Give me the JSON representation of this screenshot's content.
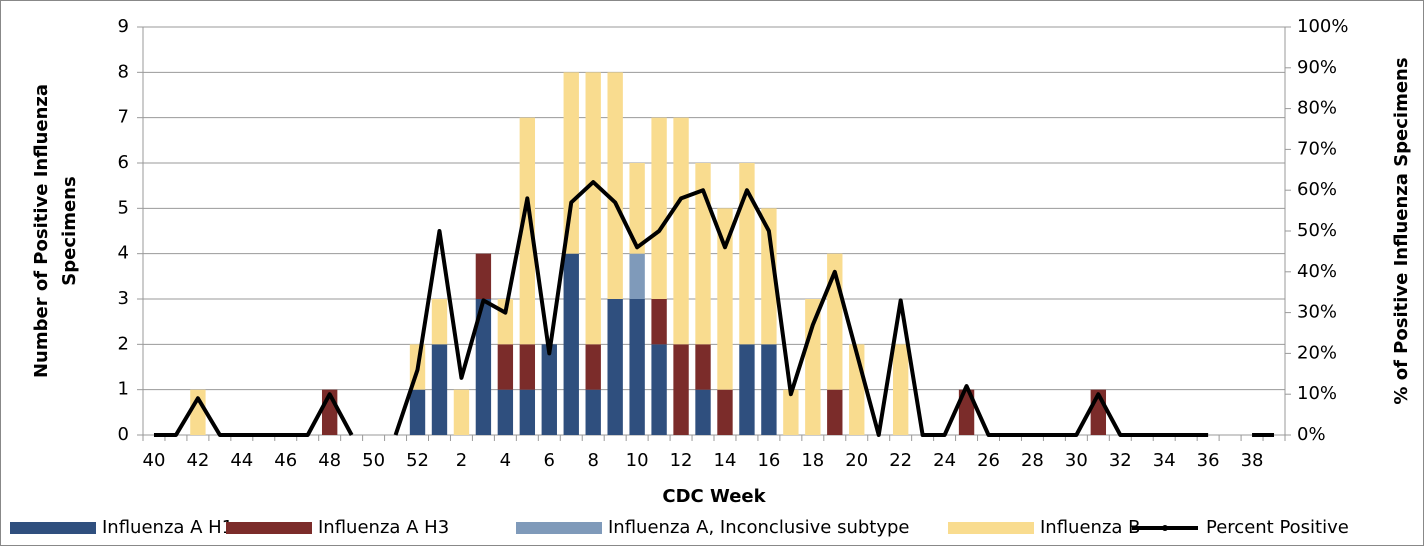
{
  "chart_data": {
    "type": "bar",
    "x_label": "CDC Week",
    "y_label": [
      "Number of Positive Influenza",
      "Specimens"
    ],
    "y2_label": "% of Positive Influenza Specimens",
    "categories": [
      "40",
      null,
      "42",
      null,
      "44",
      null,
      "46",
      null,
      "48",
      null,
      "50",
      null,
      "52",
      null,
      "2",
      null,
      "4",
      null,
      "6",
      null,
      "8",
      null,
      "10",
      null,
      "12",
      null,
      "14",
      null,
      "16",
      null,
      "18",
      null,
      "20",
      null,
      "22",
      null,
      "24",
      null,
      "26",
      null,
      "28",
      null,
      "30",
      null,
      "32",
      null,
      "34",
      null,
      "36",
      null,
      "38",
      null
    ],
    "ylim": [
      0,
      9
    ],
    "yticks": [
      0,
      1,
      2,
      3,
      4,
      5,
      6,
      7,
      8,
      9
    ],
    "y2lim": [
      0,
      100
    ],
    "y2ticks": [
      {
        "value": 0,
        "label": "0%"
      },
      {
        "value": 10,
        "label": "10%"
      },
      {
        "value": 20,
        "label": "20%"
      },
      {
        "value": 30,
        "label": "30%"
      },
      {
        "value": 40,
        "label": "40%"
      },
      {
        "value": 50,
        "label": "50%"
      },
      {
        "value": 60,
        "label": "60%"
      },
      {
        "value": 70,
        "label": "70%"
      },
      {
        "value": 80,
        "label": "80%"
      },
      {
        "value": 90,
        "label": "90%"
      },
      {
        "value": 100,
        "label": "100%"
      }
    ],
    "grid": true,
    "legend": "bottom",
    "series": [
      {
        "name": "Influenza A H1",
        "color": "#2f4f7e",
        "values": [
          0,
          0,
          0,
          0,
          0,
          0,
          0,
          0,
          0,
          0,
          0,
          0,
          1,
          2,
          0,
          3,
          1,
          1,
          2,
          4,
          1,
          3,
          3,
          2,
          0,
          1,
          0,
          2,
          2,
          0,
          0,
          0,
          0,
          0,
          0,
          0,
          0,
          0,
          0,
          0,
          0,
          0,
          0,
          0,
          0,
          0,
          0,
          0,
          0,
          0,
          0,
          0
        ]
      },
      {
        "name": "Influenza A H3",
        "color": "#7b2c2a",
        "values": [
          0,
          0,
          0,
          0,
          0,
          0,
          0,
          0,
          1,
          0,
          0,
          0,
          0,
          0,
          0,
          1,
          1,
          1,
          0,
          0,
          1,
          0,
          0,
          1,
          2,
          1,
          1,
          0,
          0,
          0,
          0,
          1,
          0,
          0,
          0,
          0,
          0,
          1,
          0,
          0,
          0,
          0,
          0,
          1,
          0,
          0,
          0,
          0,
          0,
          0,
          0,
          0
        ]
      },
      {
        "name": "Influenza A, Inconclusive subtype",
        "color": "#7f9aba",
        "values": [
          0,
          0,
          0,
          0,
          0,
          0,
          0,
          0,
          0,
          0,
          0,
          0,
          0,
          0,
          0,
          0,
          0,
          0,
          0,
          0,
          0,
          0,
          1,
          0,
          0,
          0,
          0,
          0,
          0,
          0,
          0,
          0,
          0,
          0,
          0,
          0,
          0,
          0,
          0,
          0,
          0,
          0,
          0,
          0,
          0,
          0,
          0,
          0,
          0,
          0,
          0,
          0
        ]
      },
      {
        "name": "Influenza B",
        "color": "#f9dc8f",
        "values": [
          0,
          0,
          1,
          0,
          0,
          0,
          0,
          0,
          0,
          0,
          0,
          0,
          1,
          1,
          1,
          0,
          1,
          5,
          0,
          4,
          6,
          5,
          2,
          4,
          5,
          4,
          4,
          4,
          3,
          1,
          3,
          3,
          2,
          0,
          2,
          0,
          0,
          0,
          0,
          0,
          0,
          0,
          0,
          0,
          0,
          0,
          0,
          0,
          0,
          0,
          0,
          0
        ]
      },
      {
        "name": "Percent Positive",
        "color": "#000000",
        "type": "line",
        "axis": "y2",
        "values": [
          0,
          0,
          9,
          0,
          0,
          0,
          0,
          0,
          10,
          0,
          null,
          0,
          16,
          50,
          14,
          33,
          30,
          58,
          20,
          57,
          62,
          57,
          46,
          50,
          58,
          60,
          46,
          60,
          50,
          10,
          27,
          40,
          20,
          0,
          33,
          0,
          0,
          12,
          0,
          0,
          0,
          0,
          0,
          10,
          0,
          0,
          0,
          0,
          0,
          null,
          0,
          0
        ]
      }
    ]
  }
}
